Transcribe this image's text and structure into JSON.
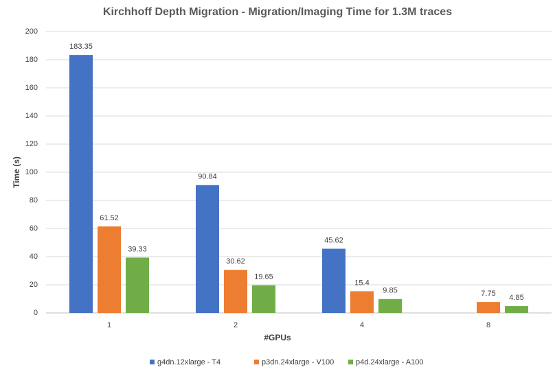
{
  "chart_data": {
    "type": "bar",
    "title": "Kirchhoff Depth Migration - Migration/Imaging Time for 1.3M traces",
    "x_label": "#GPUs",
    "y_label": "Time (s)",
    "categories": [
      "1",
      "2",
      "4",
      "8"
    ],
    "series": [
      {
        "name": "g4dn.12xlarge - T4",
        "color": "#4472c4",
        "values": [
          183.35,
          90.84,
          45.62,
          null
        ]
      },
      {
        "name": "p3dn.24xlarge - V100",
        "color": "#ed7d31",
        "values": [
          61.52,
          30.62,
          15.4,
          7.75
        ]
      },
      {
        "name": "p4d.24xlarge - A100",
        "color": "#70ad47",
        "values": [
          39.33,
          19.65,
          9.85,
          4.85
        ]
      }
    ],
    "ylim": [
      0,
      200
    ],
    "yticks": [
      0,
      20,
      40,
      60,
      80,
      100,
      120,
      140,
      160,
      180,
      200
    ],
    "grid": true,
    "legend": "bottom"
  }
}
